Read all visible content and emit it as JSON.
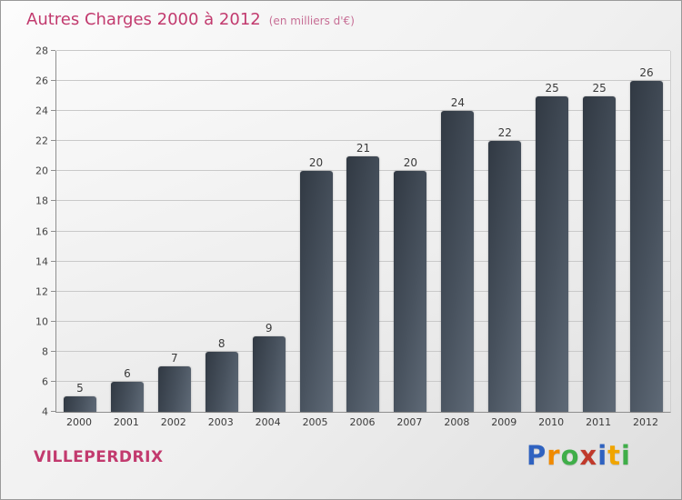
{
  "header": {
    "title": "Autres Charges 2000 à 2012",
    "subtitle": "(en milliers d'€)"
  },
  "footer": {
    "commune": "VILLEPERDRIX",
    "logo": {
      "text": "Proxiti",
      "letters": [
        {
          "ch": "P",
          "color": "#2f62c0"
        },
        {
          "ch": "r",
          "color": "#f08a00"
        },
        {
          "ch": "o",
          "color": "#3fae49"
        },
        {
          "ch": "x",
          "color": "#c0392b"
        },
        {
          "ch": "i",
          "color": "#2f62c0"
        },
        {
          "ch": "t",
          "color": "#f0a500"
        },
        {
          "ch": "i",
          "color": "#3fae49"
        }
      ]
    }
  },
  "colors": {
    "accent": "#c23a6e",
    "bar_dark": "#313943",
    "bar_light": "#5f6a77",
    "gridline": "#c9c9c9"
  },
  "chart_data": {
    "type": "bar",
    "title": "Autres Charges 2000 à 2012",
    "subtitle": "(en milliers d'€)",
    "xlabel": "",
    "ylabel": "",
    "categories": [
      "2000",
      "2001",
      "2002",
      "2003",
      "2004",
      "2005",
      "2006",
      "2007",
      "2008",
      "2009",
      "2010",
      "2011",
      "2012"
    ],
    "values": [
      5,
      6,
      7,
      8,
      9,
      20,
      21,
      20,
      24,
      22,
      25,
      25,
      26
    ],
    "ylim": [
      4,
      28
    ],
    "ytick_step": 2,
    "grid": true,
    "legend": false
  }
}
